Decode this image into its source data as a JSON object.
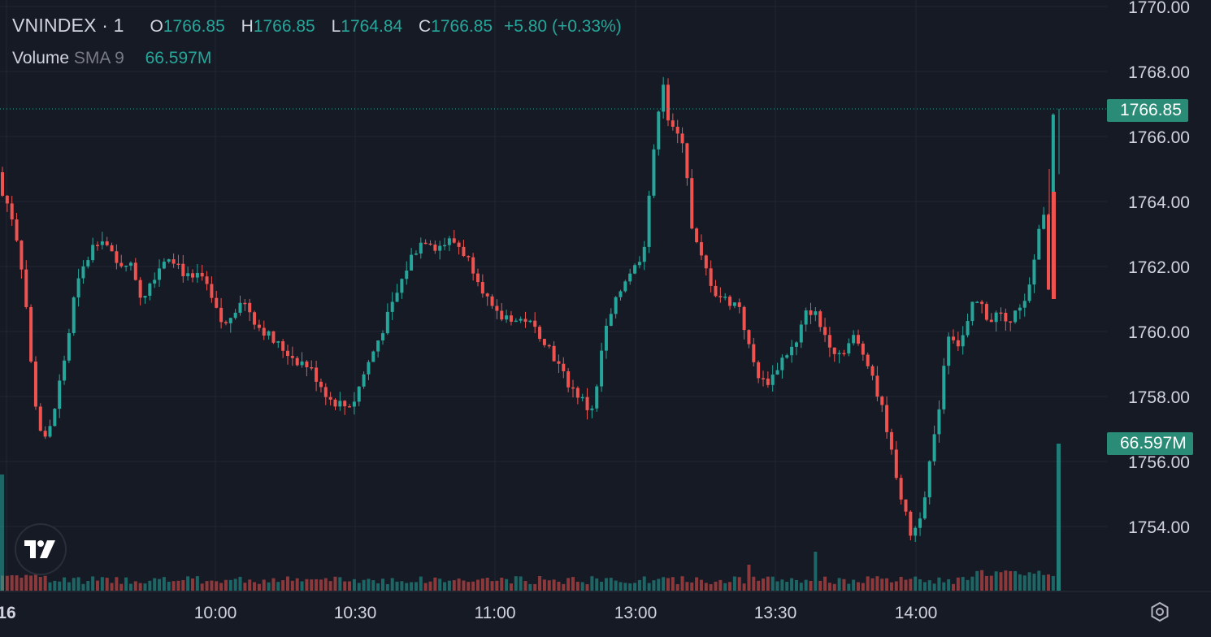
{
  "header": {
    "symbol": "VNINDEX · 1",
    "open_label": "O",
    "open": "1766.85",
    "high_label": "H",
    "high": "1766.85",
    "low_label": "L",
    "low": "1764.84",
    "close_label": "C",
    "close": "1766.85",
    "change": "+5.80 (+0.33%)"
  },
  "volume_legend": {
    "name": "Volume",
    "indicator": "SMA 9",
    "value": "66.597M"
  },
  "price_tags": {
    "last_price": "1766.85",
    "last_volume": "66.597M"
  },
  "colors": {
    "background": "#161a25",
    "up": "#26a69a",
    "down": "#ef5350",
    "grid": "#232632",
    "text": "#d1d4dc"
  },
  "icons": {
    "logo": "tradingview-logo-icon",
    "settings": "gear-icon"
  },
  "chart_data": {
    "type": "candlestick",
    "y_axis_ticks": [
      "1754.00",
      "1756.00",
      "1758.00",
      "1760.00",
      "1762.00",
      "1764.00",
      "1766.00",
      "1768.00",
      "1770.00"
    ],
    "x_axis_ticks": [
      "16",
      "10:00",
      "10:30",
      "11:00",
      "13:00",
      "13:30",
      "14:00"
    ],
    "price_path": [
      [
        0,
        1764.9
      ],
      [
        6,
        1764.3
      ],
      [
        18,
        1763.8
      ],
      [
        30,
        1762.5
      ],
      [
        38,
        1760.8
      ],
      [
        46,
        1758.4
      ],
      [
        54,
        1757.1
      ],
      [
        62,
        1756.6
      ],
      [
        70,
        1757.2
      ],
      [
        78,
        1758.3
      ],
      [
        88,
        1759.5
      ],
      [
        98,
        1761.2
      ],
      [
        108,
        1761.9
      ],
      [
        120,
        1762.6
      ],
      [
        130,
        1763.0
      ],
      [
        140,
        1762.5
      ],
      [
        150,
        1762.0
      ],
      [
        160,
        1762.2
      ],
      [
        170,
        1761.9
      ],
      [
        180,
        1761.0
      ],
      [
        192,
        1761.6
      ],
      [
        202,
        1762.0
      ],
      [
        212,
        1762.4
      ],
      [
        222,
        1762.2
      ],
      [
        232,
        1761.8
      ],
      [
        242,
        1761.5
      ],
      [
        252,
        1761.8
      ],
      [
        262,
        1761.2
      ],
      [
        272,
        1760.6
      ],
      [
        282,
        1760.1
      ],
      [
        292,
        1760.6
      ],
      [
        302,
        1761.0
      ],
      [
        312,
        1760.7
      ],
      [
        322,
        1760.2
      ],
      [
        332,
        1760.0
      ],
      [
        342,
        1759.7
      ],
      [
        352,
        1759.5
      ],
      [
        362,
        1759.3
      ],
      [
        372,
        1759.1
      ],
      [
        382,
        1759.0
      ],
      [
        392,
        1758.7
      ],
      [
        402,
        1758.3
      ],
      [
        412,
        1757.9
      ],
      [
        422,
        1757.8
      ],
      [
        432,
        1757.7
      ],
      [
        442,
        1757.9
      ],
      [
        452,
        1758.6
      ],
      [
        462,
        1759.2
      ],
      [
        472,
        1759.8
      ],
      [
        482,
        1760.4
      ],
      [
        492,
        1761.0
      ],
      [
        502,
        1761.7
      ],
      [
        512,
        1762.3
      ],
      [
        522,
        1762.7
      ],
      [
        532,
        1762.9
      ],
      [
        542,
        1762.6
      ],
      [
        552,
        1762.7
      ],
      [
        562,
        1762.8
      ],
      [
        572,
        1762.6
      ],
      [
        582,
        1762.2
      ],
      [
        592,
        1761.8
      ],
      [
        602,
        1761.2
      ],
      [
        612,
        1760.6
      ],
      [
        622,
        1760.4
      ],
      [
        632,
        1760.5
      ],
      [
        642,
        1760.3
      ],
      [
        652,
        1760.4
      ],
      [
        662,
        1760.1
      ],
      [
        672,
        1759.9
      ],
      [
        682,
        1759.5
      ],
      [
        692,
        1759.0
      ],
      [
        702,
        1758.5
      ],
      [
        712,
        1758.2
      ],
      [
        722,
        1757.9
      ],
      [
        732,
        1757.5
      ],
      [
        740,
        1758.2
      ],
      [
        748,
        1759.8
      ],
      [
        758,
        1760.5
      ],
      [
        768,
        1761.2
      ],
      [
        778,
        1761.8
      ],
      [
        788,
        1762.0
      ],
      [
        798,
        1762.6
      ],
      [
        806,
        1764.6
      ],
      [
        814,
        1766.2
      ],
      [
        820,
        1768.2
      ],
      [
        826,
        1766.7
      ],
      [
        832,
        1766.2
      ],
      [
        840,
        1766.0
      ],
      [
        848,
        1765.9
      ],
      [
        856,
        1763.2
      ],
      [
        866,
        1762.4
      ],
      [
        876,
        1761.8
      ],
      [
        886,
        1761.2
      ],
      [
        896,
        1761.0
      ],
      [
        906,
        1760.9
      ],
      [
        916,
        1760.8
      ],
      [
        926,
        1759.6
      ],
      [
        936,
        1758.8
      ],
      [
        946,
        1758.4
      ],
      [
        956,
        1758.6
      ],
      [
        966,
        1759.1
      ],
      [
        976,
        1759.4
      ],
      [
        986,
        1759.6
      ],
      [
        996,
        1760.5
      ],
      [
        1006,
        1760.7
      ],
      [
        1016,
        1760.1
      ],
      [
        1026,
        1759.7
      ],
      [
        1036,
        1759.3
      ],
      [
        1046,
        1759.5
      ],
      [
        1056,
        1759.8
      ],
      [
        1066,
        1759.4
      ],
      [
        1076,
        1759.0
      ],
      [
        1086,
        1758.0
      ],
      [
        1096,
        1757.2
      ],
      [
        1102,
        1756.3
      ],
      [
        1110,
        1755.5
      ],
      [
        1118,
        1754.5
      ],
      [
        1126,
        1753.8
      ],
      [
        1134,
        1754.0
      ],
      [
        1142,
        1754.8
      ],
      [
        1150,
        1756.0
      ],
      [
        1158,
        1757.0
      ],
      [
        1166,
        1758.8
      ],
      [
        1174,
        1760.1
      ],
      [
        1184,
        1759.6
      ],
      [
        1194,
        1760.0
      ],
      [
        1204,
        1760.9
      ],
      [
        1214,
        1760.8
      ],
      [
        1224,
        1760.3
      ],
      [
        1234,
        1760.6
      ],
      [
        1244,
        1760.1
      ],
      [
        1254,
        1760.8
      ],
      [
        1264,
        1760.6
      ],
      [
        1274,
        1761.5
      ],
      [
        1282,
        1762.8
      ],
      [
        1288,
        1764.2
      ],
      [
        1296,
        1761.2
      ],
      [
        1302,
        1766.8
      ]
    ],
    "volume_last_bar": "66.597M"
  }
}
